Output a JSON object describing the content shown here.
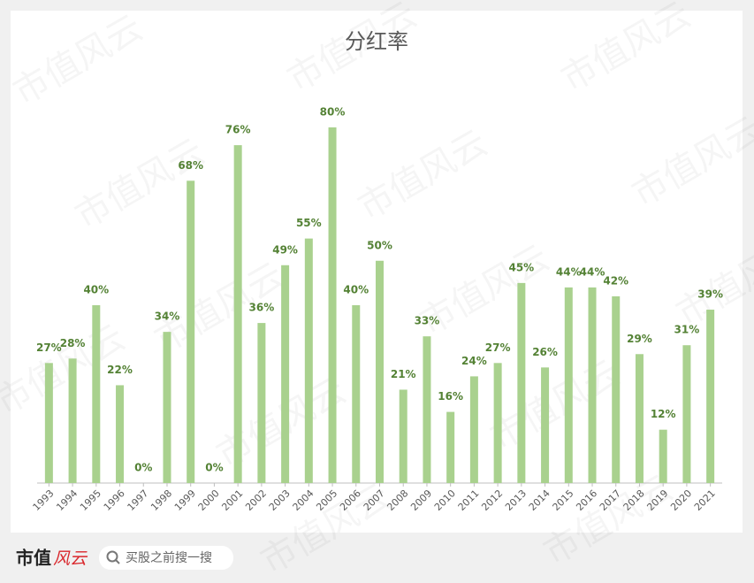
{
  "chart_data": {
    "type": "bar",
    "title": "分红率",
    "categories": [
      "1993",
      "1994",
      "1995",
      "1996",
      "1997",
      "1998",
      "1999",
      "2000",
      "2001",
      "2002",
      "2003",
      "2004",
      "2005",
      "2006",
      "2007",
      "2008",
      "2009",
      "2010",
      "2011",
      "2012",
      "2013",
      "2014",
      "2015",
      "2016",
      "2017",
      "2018",
      "2019",
      "2020",
      "2021"
    ],
    "values": [
      27,
      28,
      40,
      22,
      0,
      34,
      68,
      0,
      76,
      36,
      49,
      55,
      80,
      40,
      50,
      21,
      33,
      16,
      24,
      27,
      45,
      26,
      44,
      44,
      42,
      29,
      12,
      31,
      39
    ],
    "value_labels": [
      "27%",
      "28%",
      "40%",
      "22%",
      "0%",
      "34%",
      "68%",
      "0%",
      "76%",
      "36%",
      "49%",
      "55%",
      "80%",
      "40%",
      "50%",
      "21%",
      "33%",
      "16%",
      "24%",
      "27%",
      "45%",
      "26%",
      "44%",
      "44%",
      "42%",
      "29%",
      "12%",
      "31%",
      "39%"
    ],
    "color": "#a9d18e",
    "ylim": [
      0,
      80
    ]
  },
  "watermark": "市值风云",
  "footer": {
    "logo_main": "市值",
    "logo_accent": "风云",
    "search": "买股之前搜一搜"
  }
}
